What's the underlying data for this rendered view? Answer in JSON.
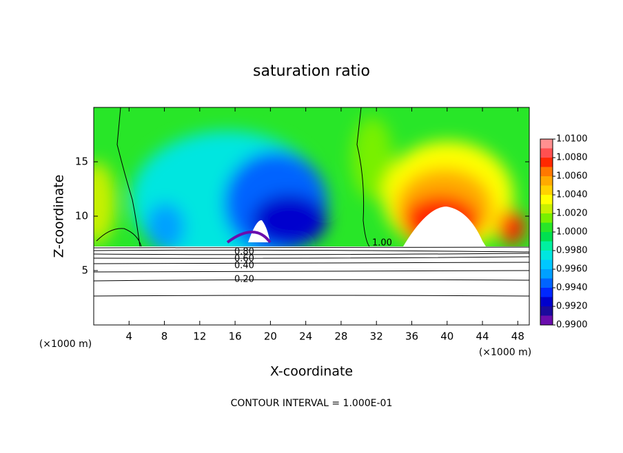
{
  "chart_data": {
    "type": "contour",
    "title": "saturation ratio",
    "x_label": "X-coordinate",
    "y_label": "Z-coordinate",
    "x_unit": "(×1000 m)",
    "xlim": [
      0,
      49.3
    ],
    "xticks": [
      4,
      8,
      12,
      16,
      20,
      24,
      28,
      32,
      36,
      40,
      44,
      48
    ],
    "ylim": [
      0,
      20
    ],
    "yticks": [
      5,
      10,
      15
    ],
    "contour_labels": [
      "1.00",
      "0.80",
      "0.60",
      "0.40",
      "0.20"
    ],
    "footnote": "CONTOUR INTERVAL = 1.000E-01",
    "colorbar": {
      "lim": [
        0.99,
        1.01
      ],
      "ticks": [
        {
          "value": 0.99,
          "label": "0.9900"
        },
        {
          "value": 0.992,
          "label": "0.9920"
        },
        {
          "value": 0.994,
          "label": "0.9940"
        },
        {
          "value": 0.996,
          "label": "0.9960"
        },
        {
          "value": 0.998,
          "label": "0.9980"
        },
        {
          "value": 1.0,
          "label": "1.0000"
        },
        {
          "value": 1.002,
          "label": "1.0020"
        },
        {
          "value": 1.004,
          "label": "1.0040"
        },
        {
          "value": 1.006,
          "label": "1.0060"
        },
        {
          "value": 1.008,
          "label": "1.0080"
        },
        {
          "value": 1.01,
          "label": "1.0100"
        }
      ],
      "colors": [
        "#6a0dad",
        "#1a0a9c",
        "#0000cd",
        "#0028ff",
        "#0064ff",
        "#00a0ff",
        "#00c8ff",
        "#00e6e0",
        "#00f0a0",
        "#00e050",
        "#28e628",
        "#78f000",
        "#c8f000",
        "#ffff00",
        "#ffd200",
        "#ffaa00",
        "#ff7800",
        "#ff2800",
        "#ff5050",
        "#ff9090"
      ]
    }
  }
}
